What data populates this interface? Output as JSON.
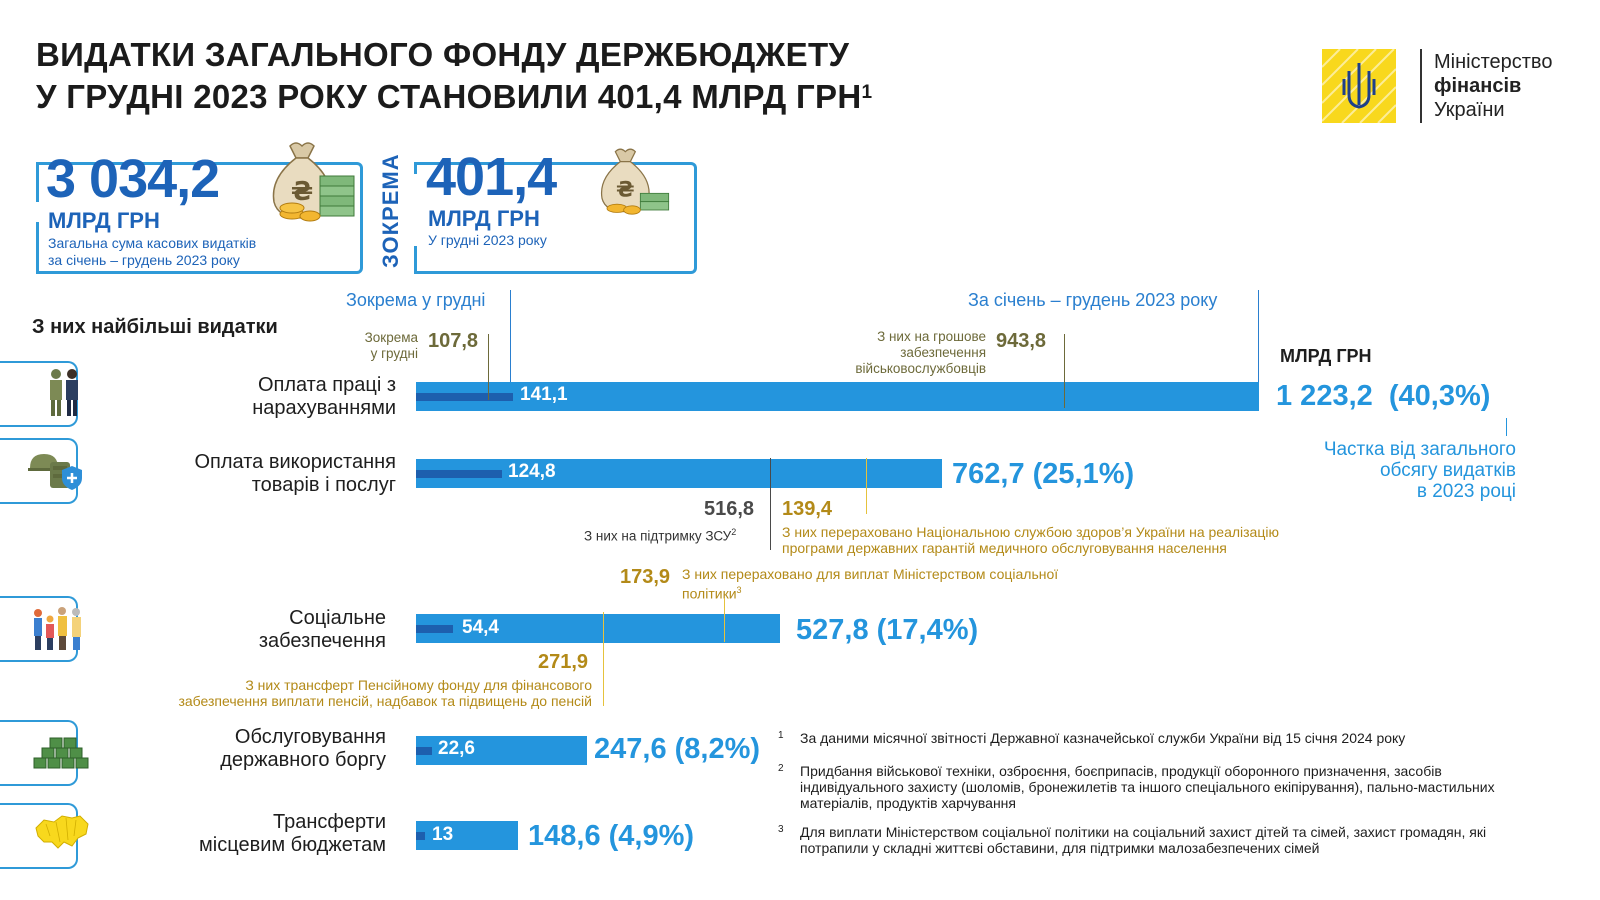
{
  "title": {
    "line1": "ВИДАТКИ ЗАГАЛЬНОГО ФОНДУ ДЕРЖБЮДЖЕТУ",
    "line2": "У ГРУДНІ 2023 РОКУ СТАНОВИЛИ 401,4 МЛРД ГРН",
    "footnote_mark": "1"
  },
  "logo": {
    "line1": "Міністерство",
    "line2": "фінансів",
    "line3": "України",
    "color": "#f8d81d"
  },
  "kpi_total": {
    "value": "3 034,2",
    "unit": "МЛРД ГРН",
    "desc1": "Загальна сума касових видатків",
    "desc2": "за січень – грудень 2023 року",
    "icon": "money-bag-icon"
  },
  "separator_label": "ЗОКРЕМА",
  "kpi_december": {
    "value": "401,4",
    "unit": "МЛРД ГРН",
    "desc": "У грудні 2023 року",
    "icon": "money-bag-icon"
  },
  "section_title": "З них найбільші видатки",
  "header_december": "Зокрема у грудні",
  "header_year": "За січень – грудень 2023 року",
  "unit_label": "МЛРД ГРН",
  "share_note": {
    "l1": "Частка від загального",
    "l2": "обсягу видатків",
    "l3": "в 2023 році"
  },
  "chart_data": {
    "type": "bar",
    "orientation": "horizontal",
    "unit": "МЛРД ГРН",
    "categories": [
      "Оплата праці з нарахуваннями",
      "Оплата використання товарів і послуг",
      "Соціальне забезпечення",
      "Обслуговування державного боргу",
      "Трансферти місцевим бюджетам"
    ],
    "series": [
      {
        "name": "За січень – грудень 2023 року",
        "values": [
          1223.2,
          762.7,
          527.8,
          247.6,
          148.6
        ]
      },
      {
        "name": "Зокрема у грудні",
        "values": [
          141.1,
          124.8,
          54.4,
          22.6,
          13
        ]
      }
    ]
  },
  "categories": [
    {
      "label_l1": "Оплата праці з",
      "label_l2": "нарахуваннями",
      "icon": "workers-icon",
      "dec_label": "141,1",
      "total_label": "1 223,2",
      "share_label": "(40,3%)"
    },
    {
      "label_l1": "Оплата використання",
      "label_l2": "товарів і послуг",
      "icon": "military-gear-icon",
      "dec_label": "124,8",
      "total_label": "762,7 (25,1%)"
    },
    {
      "label_l1": "Соціальне",
      "label_l2": "забезпечення",
      "icon": "family-icon",
      "dec_label": "54,4",
      "total_label": "527,8 (17,4%)"
    },
    {
      "label_l1": "Обслуговування",
      "label_l2": "державного боргу",
      "icon": "banknotes-icon",
      "dec_label": "22,6",
      "total_label": "247,6 (8,2%)"
    },
    {
      "label_l1": "Трансферти",
      "label_l2": "місцевим бюджетам",
      "icon": "ukraine-map-icon",
      "dec_label": "13",
      "total_label": "148,6 (4,9%)"
    }
  ],
  "annotations": {
    "salary_dec": {
      "value": "107,8",
      "l1": "Зокрема",
      "l2": "у грудні"
    },
    "salary_year": {
      "value": "943,8",
      "l1": "З них на грошове",
      "l2": "забезпечення",
      "l3": "військовослужбовців"
    },
    "goods_zsu": {
      "value": "516,8",
      "text": "З них на підтримку ЗСУ",
      "mark": "2"
    },
    "goods_health": {
      "value": "139,4",
      "l1": "З них перераховано Національною службою здоров’я України на реалізацію",
      "l2": "програми державних гарантій медичного обслуговування населення"
    },
    "social_msp": {
      "value": "173,9",
      "l1": "З них перераховано для виплат Міністерством соціальної",
      "l2": "політики",
      "mark": "3"
    },
    "social_pension": {
      "value": "271,9",
      "l1": "З них трансферт Пенсійному фонду для фінансового",
      "l2": "забезпечення виплати пенсій, надбавок та підвищень до пенсій"
    }
  },
  "footnotes": [
    {
      "mark": "1",
      "text": "За даними місячної звітності Державної казначейської служби України від 15 січня 2024 року"
    },
    {
      "mark": "2",
      "text": "Придбання військової техніки, озброєння, боєприпасів, продукції оборонного призначення, засобів індивідуального захисту (шоломів, бронежилетів та іншого спеціального екіпірування), пально-мастильних матеріалів, продуктів харчування"
    },
    {
      "mark": "3",
      "text": "Для виплати Міністерством соціальної політики на соціальний захист дітей та сімей, захист громадян, які потрапили у складні життєві обставини, для підтримки малозабезпечених сімей"
    }
  ],
  "colors": {
    "bar": "#2495dd",
    "december_bar": "#1d5fae",
    "olive": "#6d6a3a",
    "gold": "#b38a18",
    "title_blue": "#1d63b8"
  }
}
